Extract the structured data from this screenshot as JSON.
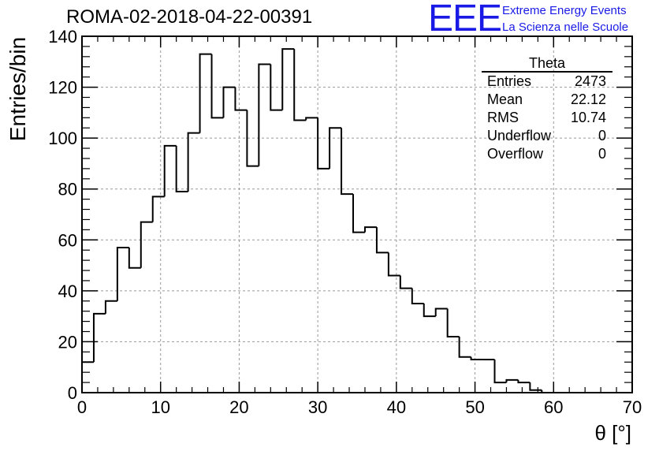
{
  "header": {
    "run_title": "ROMA-02-2018-04-22-00391",
    "logo_letters": "EEE",
    "logo_line1": "Extreme Energy Events",
    "logo_line2": "La Scienza nelle Scuole"
  },
  "stats": {
    "title": "Theta",
    "rows": [
      {
        "label": "Entries",
        "value": "2473"
      },
      {
        "label": "Mean",
        "value": "22.12"
      },
      {
        "label": "RMS",
        "value": "10.74"
      },
      {
        "label": "Underflow",
        "value": "0"
      },
      {
        "label": "Overflow",
        "value": "0"
      }
    ]
  },
  "colors": {
    "line": "#000000",
    "grid": "#999999",
    "logo": "#1a1ae6"
  },
  "chart_data": {
    "type": "histogram",
    "title": "ROMA-02-2018-04-22-00391",
    "xlabel": "θ [°]",
    "ylabel": "Entries/bin",
    "xlim": [
      0,
      70
    ],
    "ylim": [
      0,
      140
    ],
    "x_ticks": [
      "0",
      "10",
      "20",
      "30",
      "40",
      "50",
      "60",
      "70"
    ],
    "y_ticks": [
      "0",
      "20",
      "40",
      "60",
      "80",
      "100",
      "120",
      "140"
    ],
    "grid": true,
    "bin_width": 1.5,
    "bins_start": 0,
    "values": [
      12,
      31,
      36,
      57,
      49,
      67,
      77,
      97,
      79,
      102,
      133,
      108,
      120,
      111,
      89,
      129,
      111,
      135,
      107,
      108,
      88,
      104,
      78,
      63,
      65,
      55,
      46,
      41,
      35,
      30,
      33,
      22,
      14,
      13,
      13,
      4,
      5,
      4,
      1,
      0
    ]
  }
}
